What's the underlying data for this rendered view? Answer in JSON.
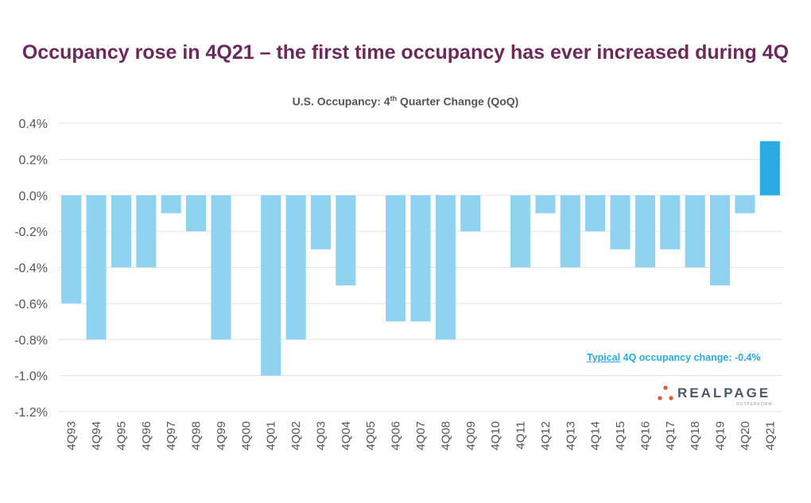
{
  "headline": "Occupancy rose in 4Q21 – the first time occupancy has ever increased during 4Q",
  "subtitle": {
    "pre": "U.S. Occupancy: 4",
    "sup": "th",
    "post": " Quarter Change (QoQ)"
  },
  "annotation": {
    "link": "Typical",
    "text": " 4Q occupancy change: -0.4%"
  },
  "logo": {
    "word": "REALPAGE",
    "tagline": "OUTPERFORM",
    "dot_color": "#e8533f"
  },
  "colors": {
    "bar": "#8fd3f0",
    "highlight": "#29abe2",
    "title": "#6b2a5a",
    "grid": "#e3e3e3"
  },
  "chart_data": {
    "type": "bar",
    "title": "U.S. Occupancy: 4th Quarter Change (QoQ)",
    "categories": [
      "4Q93",
      "4Q94",
      "4Q95",
      "4Q96",
      "4Q97",
      "4Q98",
      "4Q99",
      "4Q00",
      "4Q01",
      "4Q02",
      "4Q03",
      "4Q04",
      "4Q05",
      "4Q06",
      "4Q07",
      "4Q08",
      "4Q09",
      "4Q10",
      "4Q11",
      "4Q12",
      "4Q13",
      "4Q14",
      "4Q15",
      "4Q16",
      "4Q17",
      "4Q18",
      "4Q19",
      "4Q20",
      "4Q21"
    ],
    "values": [
      -0.6,
      -0.8,
      -0.4,
      -0.4,
      -0.1,
      -0.2,
      -0.8,
      0,
      -1.0,
      -0.8,
      -0.3,
      -0.5,
      0,
      -0.7,
      -0.7,
      -0.8,
      -0.2,
      0,
      -0.4,
      -0.1,
      -0.4,
      -0.2,
      -0.3,
      -0.4,
      -0.3,
      -0.4,
      -0.5,
      -0.1,
      0.3
    ],
    "highlight_category": "4Q21",
    "ylim": [
      -1.2,
      0.4
    ],
    "yticks": [
      "0.4%",
      "0.2%",
      "0.0%",
      "-0.2%",
      "-0.4%",
      "-0.6%",
      "-0.8%",
      "-1.0%",
      "-1.2%"
    ],
    "grid": true,
    "legend": false
  }
}
